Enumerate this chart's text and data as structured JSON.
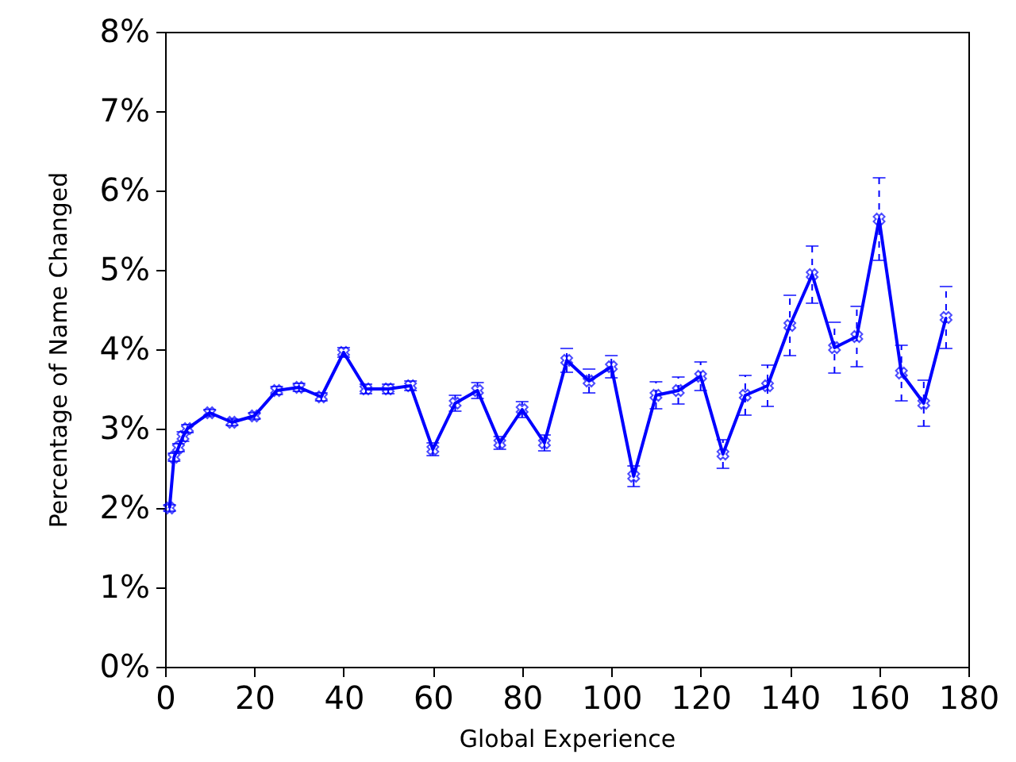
{
  "chart_data": {
    "type": "line",
    "xlabel": "Global Experience",
    "ylabel": "Percentage of Name Changed",
    "x": [
      1,
      2,
      3,
      4,
      5,
      10,
      15,
      20,
      25,
      30,
      35,
      40,
      45,
      50,
      55,
      60,
      65,
      70,
      75,
      80,
      85,
      90,
      95,
      100,
      105,
      110,
      115,
      120,
      125,
      130,
      135,
      140,
      145,
      150,
      155,
      160,
      165,
      170,
      175
    ],
    "series": [
      {
        "color": "#0000ff",
        "values": [
          2.0,
          2.64,
          2.76,
          2.9,
          3.0,
          3.2,
          3.08,
          3.16,
          3.48,
          3.52,
          3.4,
          3.96,
          3.5,
          3.5,
          3.54,
          2.74,
          3.32,
          3.48,
          2.82,
          3.24,
          2.82,
          3.86,
          3.6,
          3.78,
          2.4,
          3.42,
          3.48,
          3.66,
          2.68,
          3.42,
          3.54,
          4.3,
          4.94,
          4.02,
          4.16,
          5.64,
          3.7,
          3.32,
          4.4
        ],
        "errors": [
          0.04,
          0.05,
          0.05,
          0.06,
          0.05,
          0.04,
          0.04,
          0.04,
          0.05,
          0.05,
          0.05,
          0.06,
          0.06,
          0.06,
          0.06,
          0.08,
          0.1,
          0.1,
          0.08,
          0.1,
          0.1,
          0.15,
          0.15,
          0.14,
          0.13,
          0.17,
          0.17,
          0.18,
          0.18,
          0.25,
          0.26,
          0.38,
          0.36,
          0.32,
          0.38,
          0.52,
          0.35,
          0.29,
          0.39
        ]
      }
    ],
    "xlim": [
      0,
      180
    ],
    "xticks": [
      0,
      20,
      40,
      60,
      80,
      100,
      120,
      140,
      160,
      180
    ],
    "ylim": [
      0,
      8
    ],
    "yticks": [
      {
        "value": 0,
        "label": "0%"
      },
      {
        "value": 1,
        "label": "1%"
      },
      {
        "value": 2,
        "label": "2%"
      },
      {
        "value": 3,
        "label": "3%"
      },
      {
        "value": 4,
        "label": "4%"
      },
      {
        "value": 5,
        "label": "5%"
      },
      {
        "value": 6,
        "label": "6%"
      },
      {
        "value": 7,
        "label": "7%"
      },
      {
        "value": 8,
        "label": "8%"
      }
    ],
    "grid": false,
    "marker": "cross",
    "line_style": "solid"
  }
}
